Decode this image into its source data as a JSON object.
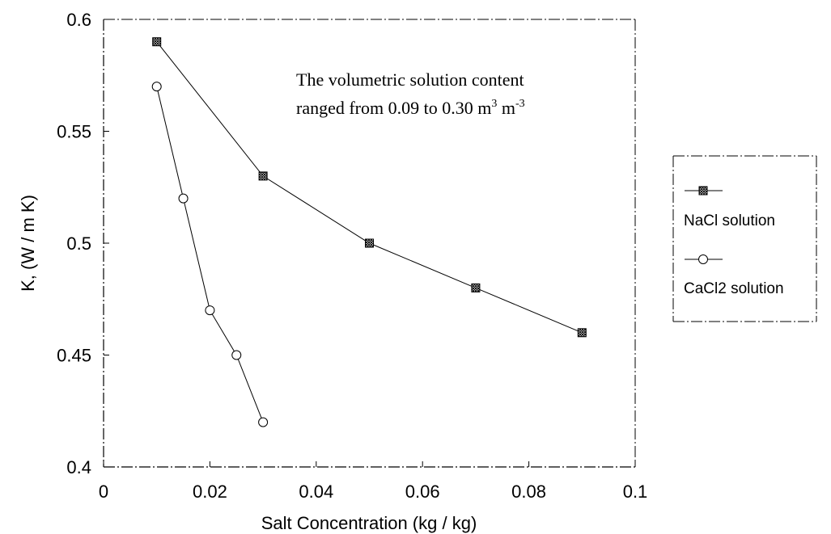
{
  "chart_data": {
    "type": "line",
    "xlabel": "Salt Concentration (kg / kg)",
    "ylabel": "K, (W / m K)",
    "xlim": [
      0,
      0.1
    ],
    "ylim": [
      0.4,
      0.6
    ],
    "x_ticks": [
      0,
      0.02,
      0.04,
      0.06,
      0.08,
      0.1
    ],
    "x_tick_labels": [
      "0",
      "0.02",
      "0.04",
      "0.06",
      "0.08",
      "0.1"
    ],
    "y_ticks": [
      0.4,
      0.45,
      0.5,
      0.55,
      0.6
    ],
    "y_tick_labels": [
      "0.4",
      "0.45",
      "0.5",
      "0.55",
      "0.6"
    ],
    "grid": false,
    "legend_position": "right",
    "annotation": {
      "line1": "The volumetric solution content",
      "line2_prefix": "ranged from 0.09 to 0.30 m",
      "line2_sup1": "3",
      "line2_mid": " m",
      "line2_sup2": "-3"
    },
    "series": [
      {
        "name": "NaCl solution",
        "marker": "square-hatched",
        "x": [
          0.01,
          0.03,
          0.05,
          0.07,
          0.09
        ],
        "y": [
          0.59,
          0.53,
          0.5,
          0.48,
          0.46
        ]
      },
      {
        "name": "CaCl2 solution",
        "marker": "circle-open",
        "x": [
          0.01,
          0.015,
          0.02,
          0.025,
          0.03
        ],
        "y": [
          0.57,
          0.52,
          0.47,
          0.45,
          0.42
        ]
      }
    ]
  }
}
